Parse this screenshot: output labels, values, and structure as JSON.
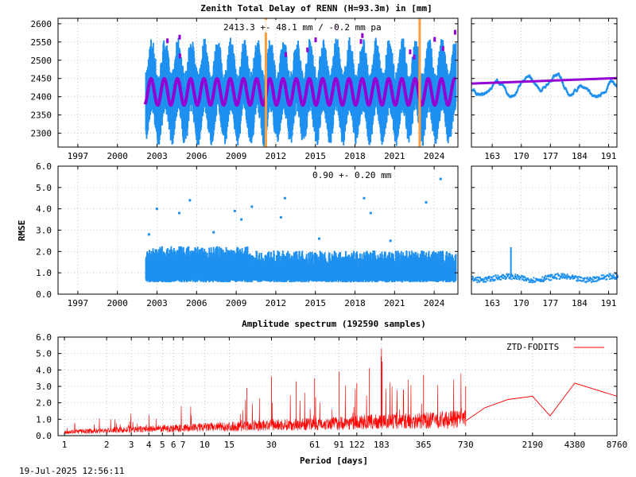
{
  "chart_data": [
    {
      "id": "ztd_main",
      "type": "scatter",
      "title": "Zenith Total Delay of RENN (H=93.3m) in [mm]",
      "annotation": "2413.3 +-  48.1 mm / -0.2 mm pa",
      "xlim": [
        1995.5,
        2025.8
      ],
      "ylim": [
        2262,
        2615
      ],
      "x_ticks": [
        "1997",
        "2000",
        "2003",
        "2006",
        "2009",
        "2012",
        "2015",
        "2018",
        "2021",
        "2024"
      ],
      "y_ticks": [
        "2600",
        "2550",
        "2500",
        "2450",
        "2400",
        "2350",
        "2300"
      ],
      "data_start": 2002.1,
      "data_end": 2025.6,
      "mean": 2413.3,
      "seasonal_amplitude": 48,
      "vertical_lines": [
        2011.25,
        2022.9
      ],
      "colors": {
        "data": "#1e90f0",
        "model": "#9400d3",
        "event": "#ffa040"
      }
    },
    {
      "id": "ztd_zoom",
      "type": "scatter",
      "xlim": [
        158,
        193
      ],
      "ylim": [
        2262,
        2615
      ],
      "x_ticks": [
        "163",
        "170",
        "177",
        "184",
        "191"
      ],
      "model_start": 2436,
      "model_end": 2451
    },
    {
      "id": "rmse_main",
      "type": "scatter",
      "ylabel": "RMSE",
      "annotation": "0.90 +-  0.20 mm",
      "xlim": [
        1995.5,
        2025.8
      ],
      "ylim": [
        0,
        6.0
      ],
      "x_ticks": [
        "1997",
        "2000",
        "2003",
        "2006",
        "2009",
        "2012",
        "2015",
        "2018",
        "2021",
        "2024"
      ],
      "y_ticks": [
        "6.0",
        "5.0",
        "4.0",
        "3.0",
        "2.0",
        "1.0",
        "0.0"
      ],
      "mean": 0.9,
      "outliers": [
        [
          2002.3,
          2.8
        ],
        [
          2002.9,
          4.0
        ],
        [
          2004.6,
          3.8
        ],
        [
          2005.4,
          4.4
        ],
        [
          2007.2,
          2.9
        ],
        [
          2008.8,
          3.9
        ],
        [
          2009.3,
          3.5
        ],
        [
          2010.1,
          4.1
        ],
        [
          2012.6,
          4.5
        ],
        [
          2012.3,
          3.6
        ],
        [
          2018.6,
          4.5
        ],
        [
          2019.1,
          3.8
        ],
        [
          2023.3,
          4.3
        ],
        [
          2024.4,
          5.4
        ],
        [
          2015.2,
          2.6
        ],
        [
          2020.6,
          2.5
        ]
      ]
    },
    {
      "id": "rmse_zoom",
      "type": "scatter",
      "xlim": [
        158,
        193
      ],
      "ylim": [
        0,
        6.0
      ],
      "x_ticks": [
        "163",
        "170",
        "177",
        "184",
        "191"
      ],
      "spike": [
        167.5,
        2.2
      ]
    },
    {
      "id": "spectrum",
      "type": "line",
      "title": "Amplitude spectrum (192590 samples)",
      "xlabel": "Period [days]",
      "legend": "ZTD-FODITS",
      "log_x": true,
      "xlim": [
        0.9,
        8760
      ],
      "ylim": [
        0,
        6.0
      ],
      "x_ticks": [
        "1",
        "2",
        "3",
        "4",
        "5",
        "6",
        "7",
        "10",
        "15",
        "30",
        "61",
        "91",
        "122",
        "183",
        "365",
        "730",
        "2190",
        "4380",
        "8760"
      ],
      "y_ticks": [
        "6.0",
        "5.0",
        "4.0",
        "3.0",
        "2.0",
        "1.0",
        "0.0"
      ],
      "peaks": [
        [
          183,
          5.3
        ],
        [
          182,
          4.8
        ],
        [
          185,
          4.5
        ],
        [
          150,
          4.1
        ],
        [
          91,
          3.9
        ],
        [
          122,
          3.2
        ],
        [
          30,
          3.6
        ],
        [
          61,
          3.5
        ],
        [
          365,
          3.7
        ],
        [
          730,
          3.0
        ],
        [
          45,
          3.3
        ],
        [
          20,
          2.9
        ]
      ],
      "long_period": [
        [
          730,
          0.9
        ],
        [
          1000,
          1.7
        ],
        [
          1460,
          2.2
        ],
        [
          2190,
          2.4
        ],
        [
          2920,
          1.2
        ],
        [
          4380,
          3.2
        ],
        [
          8760,
          2.4
        ]
      ],
      "color": "#ff0000"
    }
  ],
  "footer": {
    "timestamp": "19-Jul-2025 12:56:11"
  }
}
